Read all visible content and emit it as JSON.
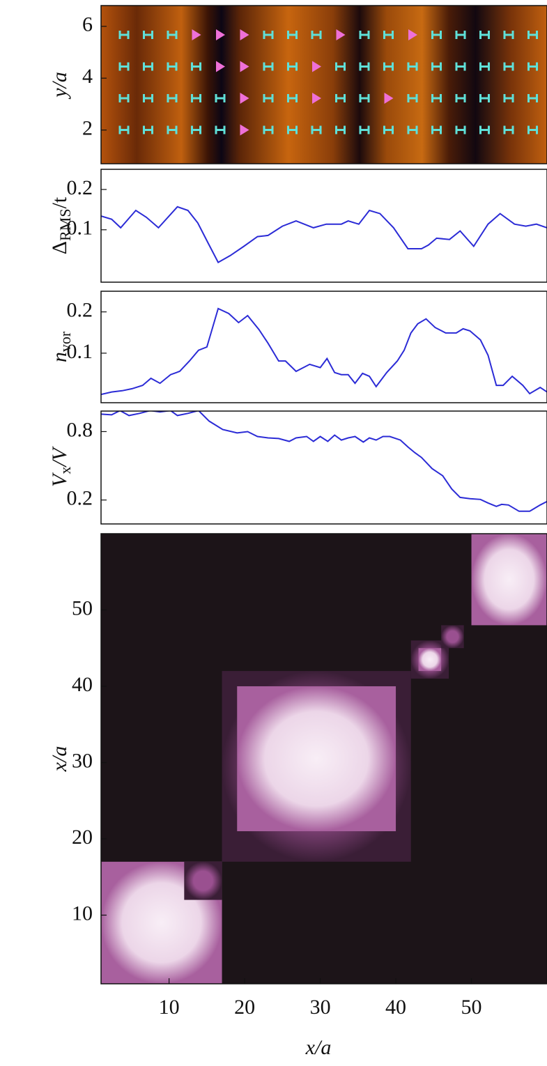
{
  "chart_data": [
    {
      "type": "heatmap",
      "ylabel": "y/a",
      "xlim": [
        1,
        60
      ],
      "ylim": [
        0.7,
        6.8
      ],
      "yticks": [
        2,
        4,
        6
      ]
    },
    {
      "type": "line",
      "ylabel": {
        "base": "Δ",
        "sub": "RMS",
        "rest": "/t"
      },
      "color": "#2b2bd6",
      "xlim": [
        1,
        60
      ],
      "ylim": [
        -0.03,
        0.25
      ],
      "yticks": [
        0.1,
        0.2
      ],
      "x": [
        1.0,
        2.4,
        3.6,
        5.6,
        7.0,
        8.6,
        11.1,
        12.5,
        13.8,
        15.2,
        16.5,
        18.1,
        19.9,
        21.7,
        23.1,
        25.0,
        26.8,
        29.1,
        30.8,
        32.8,
        33.7,
        35.1,
        36.5,
        37.9,
        39.7,
        41.6,
        43.4,
        44.3,
        45.4,
        47.1,
        48.5,
        50.3,
        52.2,
        53.8,
        55.7,
        57.2,
        58.6,
        60.0
      ],
      "values": [
        0.134,
        0.126,
        0.105,
        0.148,
        0.131,
        0.105,
        0.157,
        0.148,
        0.117,
        0.066,
        0.019,
        0.036,
        0.059,
        0.083,
        0.086,
        0.109,
        0.122,
        0.105,
        0.114,
        0.114,
        0.122,
        0.114,
        0.148,
        0.14,
        0.105,
        0.053,
        0.053,
        0.062,
        0.079,
        0.076,
        0.097,
        0.059,
        0.114,
        0.14,
        0.114,
        0.109,
        0.114,
        0.105
      ]
    },
    {
      "type": "line",
      "ylabel": {
        "base": "n",
        "sub": "vor"
      },
      "color": "#2b2bd6",
      "xlim": [
        1,
        60
      ],
      "ylim": [
        -0.02,
        0.25
      ],
      "yticks": [
        0.1,
        0.2
      ],
      "x": [
        1.0,
        2.4,
        3.8,
        5.1,
        6.5,
        7.6,
        8.8,
        10.2,
        11.4,
        12.7,
        13.9,
        15.0,
        16.5,
        17.9,
        19.2,
        20.4,
        21.9,
        23.1,
        24.5,
        25.4,
        26.8,
        28.6,
        30.0,
        30.9,
        31.9,
        32.8,
        33.7,
        34.6,
        35.6,
        36.5,
        37.4,
        38.8,
        40.2,
        41.1,
        42.0,
        42.9,
        44.0,
        45.2,
        46.6,
        48.0,
        48.9,
        49.8,
        51.2,
        52.2,
        53.3,
        54.2,
        55.4,
        56.8,
        57.7,
        59.1,
        60.0
      ],
      "values": [
        0.0,
        0.006,
        0.009,
        0.014,
        0.022,
        0.039,
        0.027,
        0.048,
        0.056,
        0.081,
        0.107,
        0.115,
        0.208,
        0.196,
        0.174,
        0.191,
        0.157,
        0.124,
        0.081,
        0.081,
        0.056,
        0.073,
        0.065,
        0.087,
        0.053,
        0.048,
        0.048,
        0.027,
        0.051,
        0.044,
        0.019,
        0.053,
        0.081,
        0.107,
        0.149,
        0.171,
        0.183,
        0.162,
        0.149,
        0.149,
        0.159,
        0.154,
        0.132,
        0.095,
        0.022,
        0.022,
        0.044,
        0.022,
        0.002,
        0.017,
        0.006
      ]
    },
    {
      "type": "line",
      "ylabel": {
        "base": "V",
        "sub": "x",
        "rest": "/V"
      },
      "color": "#2b2bd6",
      "xlim": [
        1,
        60
      ],
      "ylim": [
        -0.01,
        0.98
      ],
      "yticks": [
        0.2,
        0.8
      ],
      "x": [
        1.0,
        2.4,
        3.5,
        4.7,
        6.1,
        7.5,
        8.8,
        10.2,
        11.1,
        12.5,
        13.9,
        15.3,
        17.1,
        19.0,
        20.4,
        21.7,
        23.1,
        24.5,
        25.9,
        26.8,
        28.2,
        29.1,
        30.0,
        31.0,
        31.9,
        32.8,
        33.7,
        34.6,
        35.7,
        36.5,
        37.4,
        38.3,
        39.2,
        40.6,
        41.6,
        42.5,
        43.4,
        44.8,
        46.2,
        47.4,
        48.5,
        49.8,
        51.2,
        52.2,
        53.3,
        54.0,
        54.9,
        56.3,
        57.7,
        59.1,
        60.0
      ],
      "values": [
        0.953,
        0.947,
        0.984,
        0.941,
        0.96,
        0.984,
        0.972,
        0.984,
        0.941,
        0.96,
        0.984,
        0.892,
        0.818,
        0.788,
        0.8,
        0.757,
        0.745,
        0.739,
        0.714,
        0.745,
        0.757,
        0.714,
        0.757,
        0.714,
        0.769,
        0.726,
        0.745,
        0.757,
        0.708,
        0.745,
        0.726,
        0.757,
        0.757,
        0.726,
        0.665,
        0.616,
        0.573,
        0.475,
        0.413,
        0.297,
        0.223,
        0.211,
        0.205,
        0.174,
        0.144,
        0.162,
        0.156,
        0.101,
        0.101,
        0.156,
        0.187
      ]
    },
    {
      "type": "heatmap",
      "ylabel": "x/a",
      "xlabel": "x/a",
      "xlim": [
        1,
        60
      ],
      "ylim": [
        1,
        60
      ],
      "xticks": [
        10,
        20,
        30,
        40,
        50
      ],
      "yticks": [
        10,
        20,
        30,
        40,
        50
      ]
    }
  ]
}
